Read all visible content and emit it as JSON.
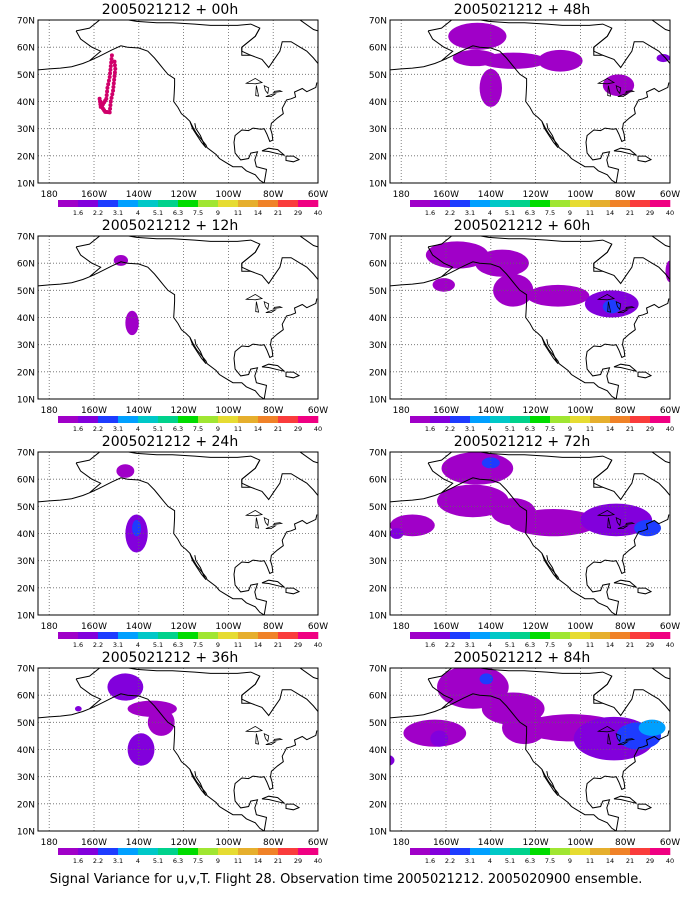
{
  "colorbar": {
    "labels": [
      "1.6",
      "2.2",
      "3.1",
      "4",
      "5.1",
      "6.3",
      "7.5",
      "9",
      "11",
      "14",
      "21",
      "29",
      "40"
    ],
    "colors": [
      "#a000c8",
      "#8200dc",
      "#1e3cff",
      "#00a0ff",
      "#00c8c8",
      "#00d28c",
      "#00dc00",
      "#a0e632",
      "#e6dc32",
      "#e6af2d",
      "#f08228",
      "#fa3c3c",
      "#f00082"
    ]
  },
  "axes": {
    "lat_labels": [
      "70N",
      "60N",
      "50N",
      "40N",
      "30N",
      "20N",
      "10N"
    ],
    "lon_labels": [
      "180",
      "160W",
      "140W",
      "120W",
      "100W",
      "80W",
      "60W"
    ],
    "lat_range": [
      10,
      70
    ],
    "lon_range": [
      -185,
      -60
    ]
  },
  "panels": [
    {
      "title": "2005021212 + 00h",
      "blobs": "p00"
    },
    {
      "title": "2005021212 + 48h",
      "blobs": "p48"
    },
    {
      "title": "2005021212 + 12h",
      "blobs": "p12"
    },
    {
      "title": "2005021212 + 60h",
      "blobs": "p60"
    },
    {
      "title": "2005021212 + 24h",
      "blobs": "p24"
    },
    {
      "title": "2005021212 + 72h",
      "blobs": "p72"
    },
    {
      "title": "2005021212 + 36h",
      "blobs": "p36"
    },
    {
      "title": "2005021212 + 84h",
      "blobs": "p84"
    }
  ],
  "footer": "Signal Variance for u,v,T. Flight 28. Observation time 2005021212. 2005020900 ensemble."
}
